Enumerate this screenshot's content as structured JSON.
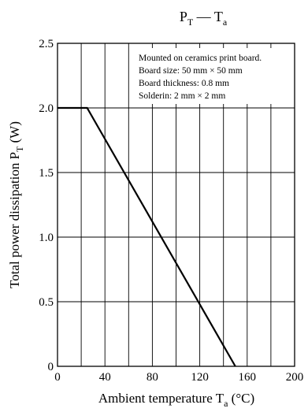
{
  "chart_data": {
    "type": "line",
    "title": {
      "main": "P",
      "main_sub": "T",
      "sep": " — ",
      "second": "T",
      "second_sub": "a"
    },
    "xlabel": {
      "text": "Ambient temperature  T",
      "sub": "a",
      "unit": "  (°C)"
    },
    "ylabel": {
      "text": "Total power dissipation  P",
      "sub": "T",
      "unit": "  (W)"
    },
    "xlim": [
      0,
      200
    ],
    "ylim": [
      0,
      2.5
    ],
    "x_ticks": [
      0,
      40,
      80,
      120,
      160,
      200
    ],
    "x_tick_labels": [
      "0",
      "40",
      "80",
      "120",
      "160",
      "200"
    ],
    "x_grid": [
      0,
      20,
      40,
      60,
      80,
      100,
      120,
      140,
      160,
      180,
      200
    ],
    "y_ticks": [
      0,
      0.5,
      1.0,
      1.5,
      2.0,
      2.5
    ],
    "y_tick_labels": [
      "0",
      "0.5",
      "1.0",
      "1.5",
      "2.0",
      "2.5"
    ],
    "grid": true,
    "series": [
      {
        "x": [
          0,
          25,
          150
        ],
        "y": [
          2.0,
          2.0,
          0
        ]
      }
    ],
    "annotations": [
      "Mounted on ceramics print board.",
      "Board size: 50 mm × 50 mm",
      "Board thickness: 0.8 mm",
      "Solderin: 2 mm × 2 mm"
    ],
    "line_color": "#000000",
    "grid_color": "#000000"
  }
}
